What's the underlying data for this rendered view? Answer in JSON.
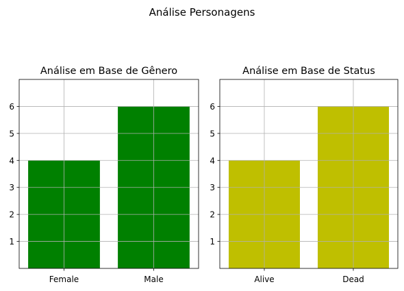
{
  "figure": {
    "suptitle": "Análise Personagens"
  },
  "chart_data": [
    {
      "type": "bar",
      "title": "Análise em Base de Gênero",
      "categories": [
        "Female",
        "Male"
      ],
      "values": [
        4,
        6
      ],
      "color": "#008000",
      "ylim": [
        0,
        7
      ],
      "yticks": [
        1,
        2,
        3,
        4,
        5,
        6
      ],
      "grid": true,
      "xlabel": "",
      "ylabel": ""
    },
    {
      "type": "bar",
      "title": "Análise em Base de Status",
      "categories": [
        "Alive",
        "Dead"
      ],
      "values": [
        4,
        6
      ],
      "color": "#bfbf00",
      "ylim": [
        0,
        7
      ],
      "yticks": [
        1,
        2,
        3,
        4,
        5,
        6
      ],
      "grid": true,
      "xlabel": "",
      "ylabel": ""
    }
  ]
}
